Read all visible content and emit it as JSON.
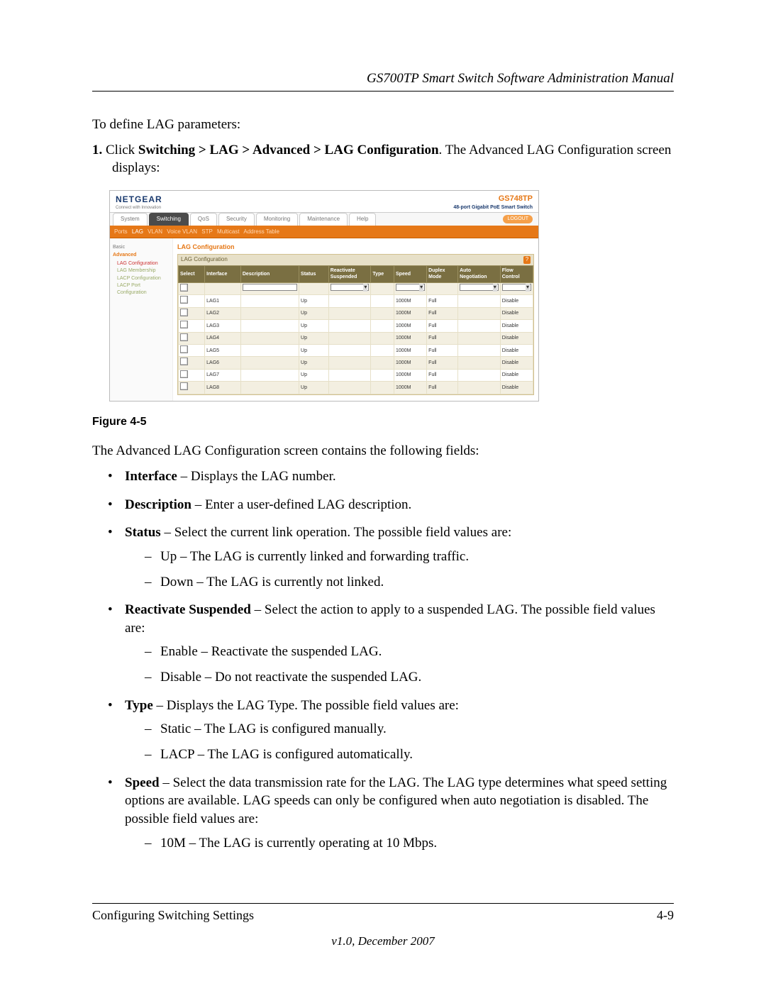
{
  "doc": {
    "header_title": "GS700TP Smart Switch Software Administration Manual",
    "intro": "To define LAG parameters:",
    "step_num": "1.",
    "step_text_a": "Click ",
    "step_bold": "Switching > LAG > Advanced > LAG Configuration",
    "step_text_b": ". The Advanced LAG Configuration screen displays:",
    "figure_caption": "Figure 4-5",
    "after_figure": "The Advanced LAG Configuration screen contains the following fields:",
    "footer_left": "Configuring Switching Settings",
    "footer_right": "4-9",
    "footer_ver": "v1.0, December 2007"
  },
  "fields": {
    "interface_b": "Interface",
    "interface_t": " – Displays the LAG number.",
    "description_b": "Description",
    "description_t": " – Enter a user-defined LAG description.",
    "status_b": "Status",
    "status_t": " – Select the current link operation. The possible field values are:",
    "status_up": "Up – The LAG is currently linked and forwarding traffic.",
    "status_down": "Down – The LAG is currently not linked.",
    "react_b": "Reactivate Suspended",
    "react_t": " – Select the action to apply to a suspended LAG. The possible field values are:",
    "react_enable": "Enable – Reactivate the suspended LAG.",
    "react_disable": "Disable – Do not reactivate the suspended LAG.",
    "type_b": "Type",
    "type_t": " – Displays the LAG Type. The possible field values are:",
    "type_static": "Static – The LAG is configured manually.",
    "type_lacp": "LACP – The LAG is configured automatically.",
    "speed_b": "Speed",
    "speed_t": " – Select the data transmission rate for the LAG. The LAG type determines what speed setting options are available. LAG speeds can only be configured when auto negotiation is disabled. The possible field values are:",
    "speed_10m": "10M – The LAG is currently operating at 10 Mbps."
  },
  "screenshot": {
    "logo": "NETGEAR",
    "logo_sub": "Connect with Innovation",
    "model": "GS748TP",
    "model_sub": "48-port Gigabit PoE Smart Switch",
    "logout": "LOGOUT",
    "tabs": [
      "System",
      "Switching",
      "QoS",
      "Security",
      "Monitoring",
      "Maintenance",
      "Help"
    ],
    "active_tab": 1,
    "subnav": [
      "Ports",
      "LAG",
      "VLAN",
      "Voice VLAN",
      "STP",
      "Multicast",
      "Address Table"
    ],
    "subnav_active": 1,
    "side": {
      "basic": "Basic",
      "advanced": "Advanced",
      "items": [
        "LAG Configuration",
        "LAG Membership",
        "LACP Configuration",
        "LACP Port Configuration"
      ]
    },
    "title": "LAG Configuration",
    "panel_hd": "LAG Configuration",
    "panel_q": "?",
    "columns": [
      "Select",
      "Interface",
      "Description",
      "Status",
      "Reactivate Suspended",
      "Type",
      "Speed",
      "Duplex Mode",
      "Auto Negotiation",
      "Flow Control"
    ],
    "rows": [
      {
        "iface": "LAG1",
        "status": "Up",
        "speed": "1000M",
        "duplex": "Full",
        "flow": "Disable"
      },
      {
        "iface": "LAG2",
        "status": "Up",
        "speed": "1000M",
        "duplex": "Full",
        "flow": "Disable"
      },
      {
        "iface": "LAG3",
        "status": "Up",
        "speed": "1000M",
        "duplex": "Full",
        "flow": "Disable"
      },
      {
        "iface": "LAG4",
        "status": "Up",
        "speed": "1000M",
        "duplex": "Full",
        "flow": "Disable"
      },
      {
        "iface": "LAG5",
        "status": "Up",
        "speed": "1000M",
        "duplex": "Full",
        "flow": "Disable"
      },
      {
        "iface": "LAG6",
        "status": "Up",
        "speed": "1000M",
        "duplex": "Full",
        "flow": "Disable"
      },
      {
        "iface": "LAG7",
        "status": "Up",
        "speed": "1000M",
        "duplex": "Full",
        "flow": "Disable"
      },
      {
        "iface": "LAG8",
        "status": "Up",
        "speed": "1000M",
        "duplex": "Full",
        "flow": "Disable"
      }
    ]
  }
}
